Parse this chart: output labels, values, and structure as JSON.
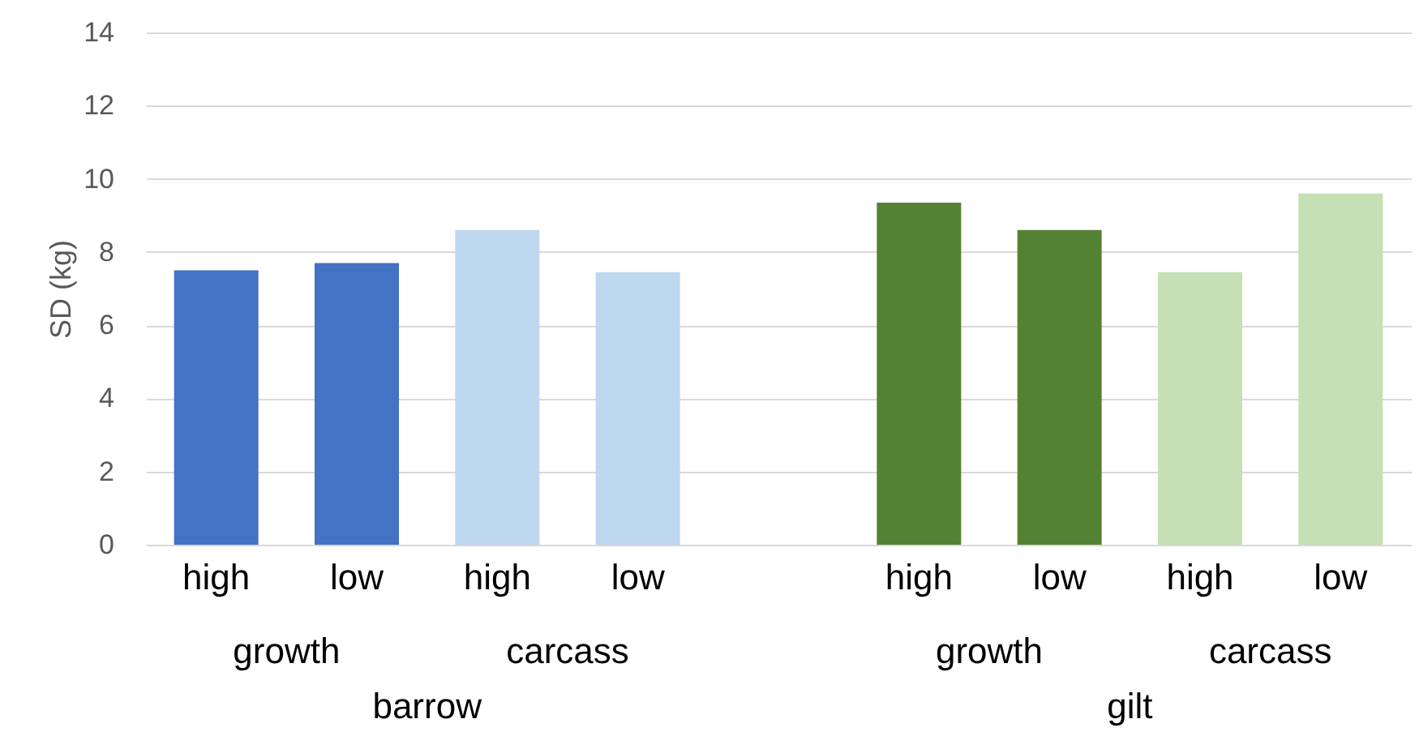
{
  "chart_data": {
    "type": "bar",
    "ylabel": "SD (kg)",
    "categories": [
      "high",
      "low",
      "high",
      "low",
      null,
      "high",
      "low",
      "high",
      "low"
    ],
    "values": [
      7.5,
      7.7,
      8.6,
      7.45,
      null,
      9.35,
      8.6,
      7.45,
      9.6
    ],
    "colors": [
      "#4472c4",
      "#4472c4",
      "#bdd7ee",
      "#bdd7ee",
      "#ffffff",
      "#548235",
      "#548235",
      "#c5e0b4",
      "#c5e0b4"
    ],
    "ylim": [
      0,
      14
    ],
    "yticks": [
      0,
      2,
      4,
      6,
      8,
      10,
      12,
      14
    ],
    "grid": "y",
    "annotations": [
      "growth",
      "carcass",
      "growth",
      "carcass",
      "barrow",
      "gilt"
    ]
  }
}
